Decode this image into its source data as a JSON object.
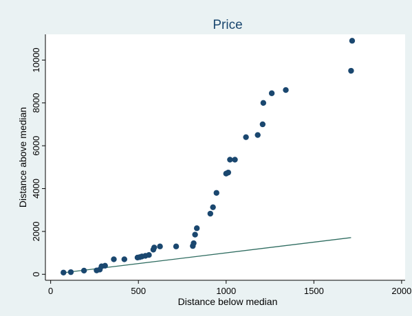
{
  "colors": {
    "background": "#eaf2f3",
    "plot_area": "#ffffff",
    "marker": "#1a476f",
    "reference_line": "#2d6b5f",
    "title": "#1a476f"
  },
  "chart_data": {
    "type": "scatter",
    "title": "Price",
    "xlabel": "Distance below median",
    "ylabel": "Distance above median",
    "xlim": [
      -30,
      2020
    ],
    "ylim": [
      -280,
      11200
    ],
    "xticks": [
      0,
      500,
      1000,
      1500,
      2000
    ],
    "yticks": [
      0,
      2000,
      4000,
      6000,
      8000,
      10000
    ],
    "grid": false,
    "legend": "none",
    "series": [
      {
        "marker": "circle",
        "points": [
          [
            73,
            80
          ],
          [
            115,
            100
          ],
          [
            190,
            170
          ],
          [
            262,
            180
          ],
          [
            280,
            220
          ],
          [
            290,
            370
          ],
          [
            310,
            400
          ],
          [
            360,
            700
          ],
          [
            420,
            700
          ],
          [
            495,
            780
          ],
          [
            508,
            800
          ],
          [
            520,
            830
          ],
          [
            540,
            860
          ],
          [
            560,
            900
          ],
          [
            585,
            1150
          ],
          [
            590,
            1250
          ],
          [
            623,
            1300
          ],
          [
            715,
            1300
          ],
          [
            810,
            1320
          ],
          [
            815,
            1450
          ],
          [
            823,
            1850
          ],
          [
            833,
            2150
          ],
          [
            910,
            2830
          ],
          [
            925,
            3130
          ],
          [
            945,
            3800
          ],
          [
            1000,
            4700
          ],
          [
            1012,
            4750
          ],
          [
            1022,
            5350
          ],
          [
            1050,
            5350
          ],
          [
            1113,
            6400
          ],
          [
            1180,
            6500
          ],
          [
            1208,
            7000
          ],
          [
            1212,
            8000
          ],
          [
            1260,
            8450
          ],
          [
            1340,
            8600
          ],
          [
            1712,
            9500
          ],
          [
            1718,
            10900
          ]
        ]
      }
    ],
    "reference_line": {
      "x": [
        73,
        1712
      ],
      "y": [
        73,
        1712
      ]
    }
  }
}
